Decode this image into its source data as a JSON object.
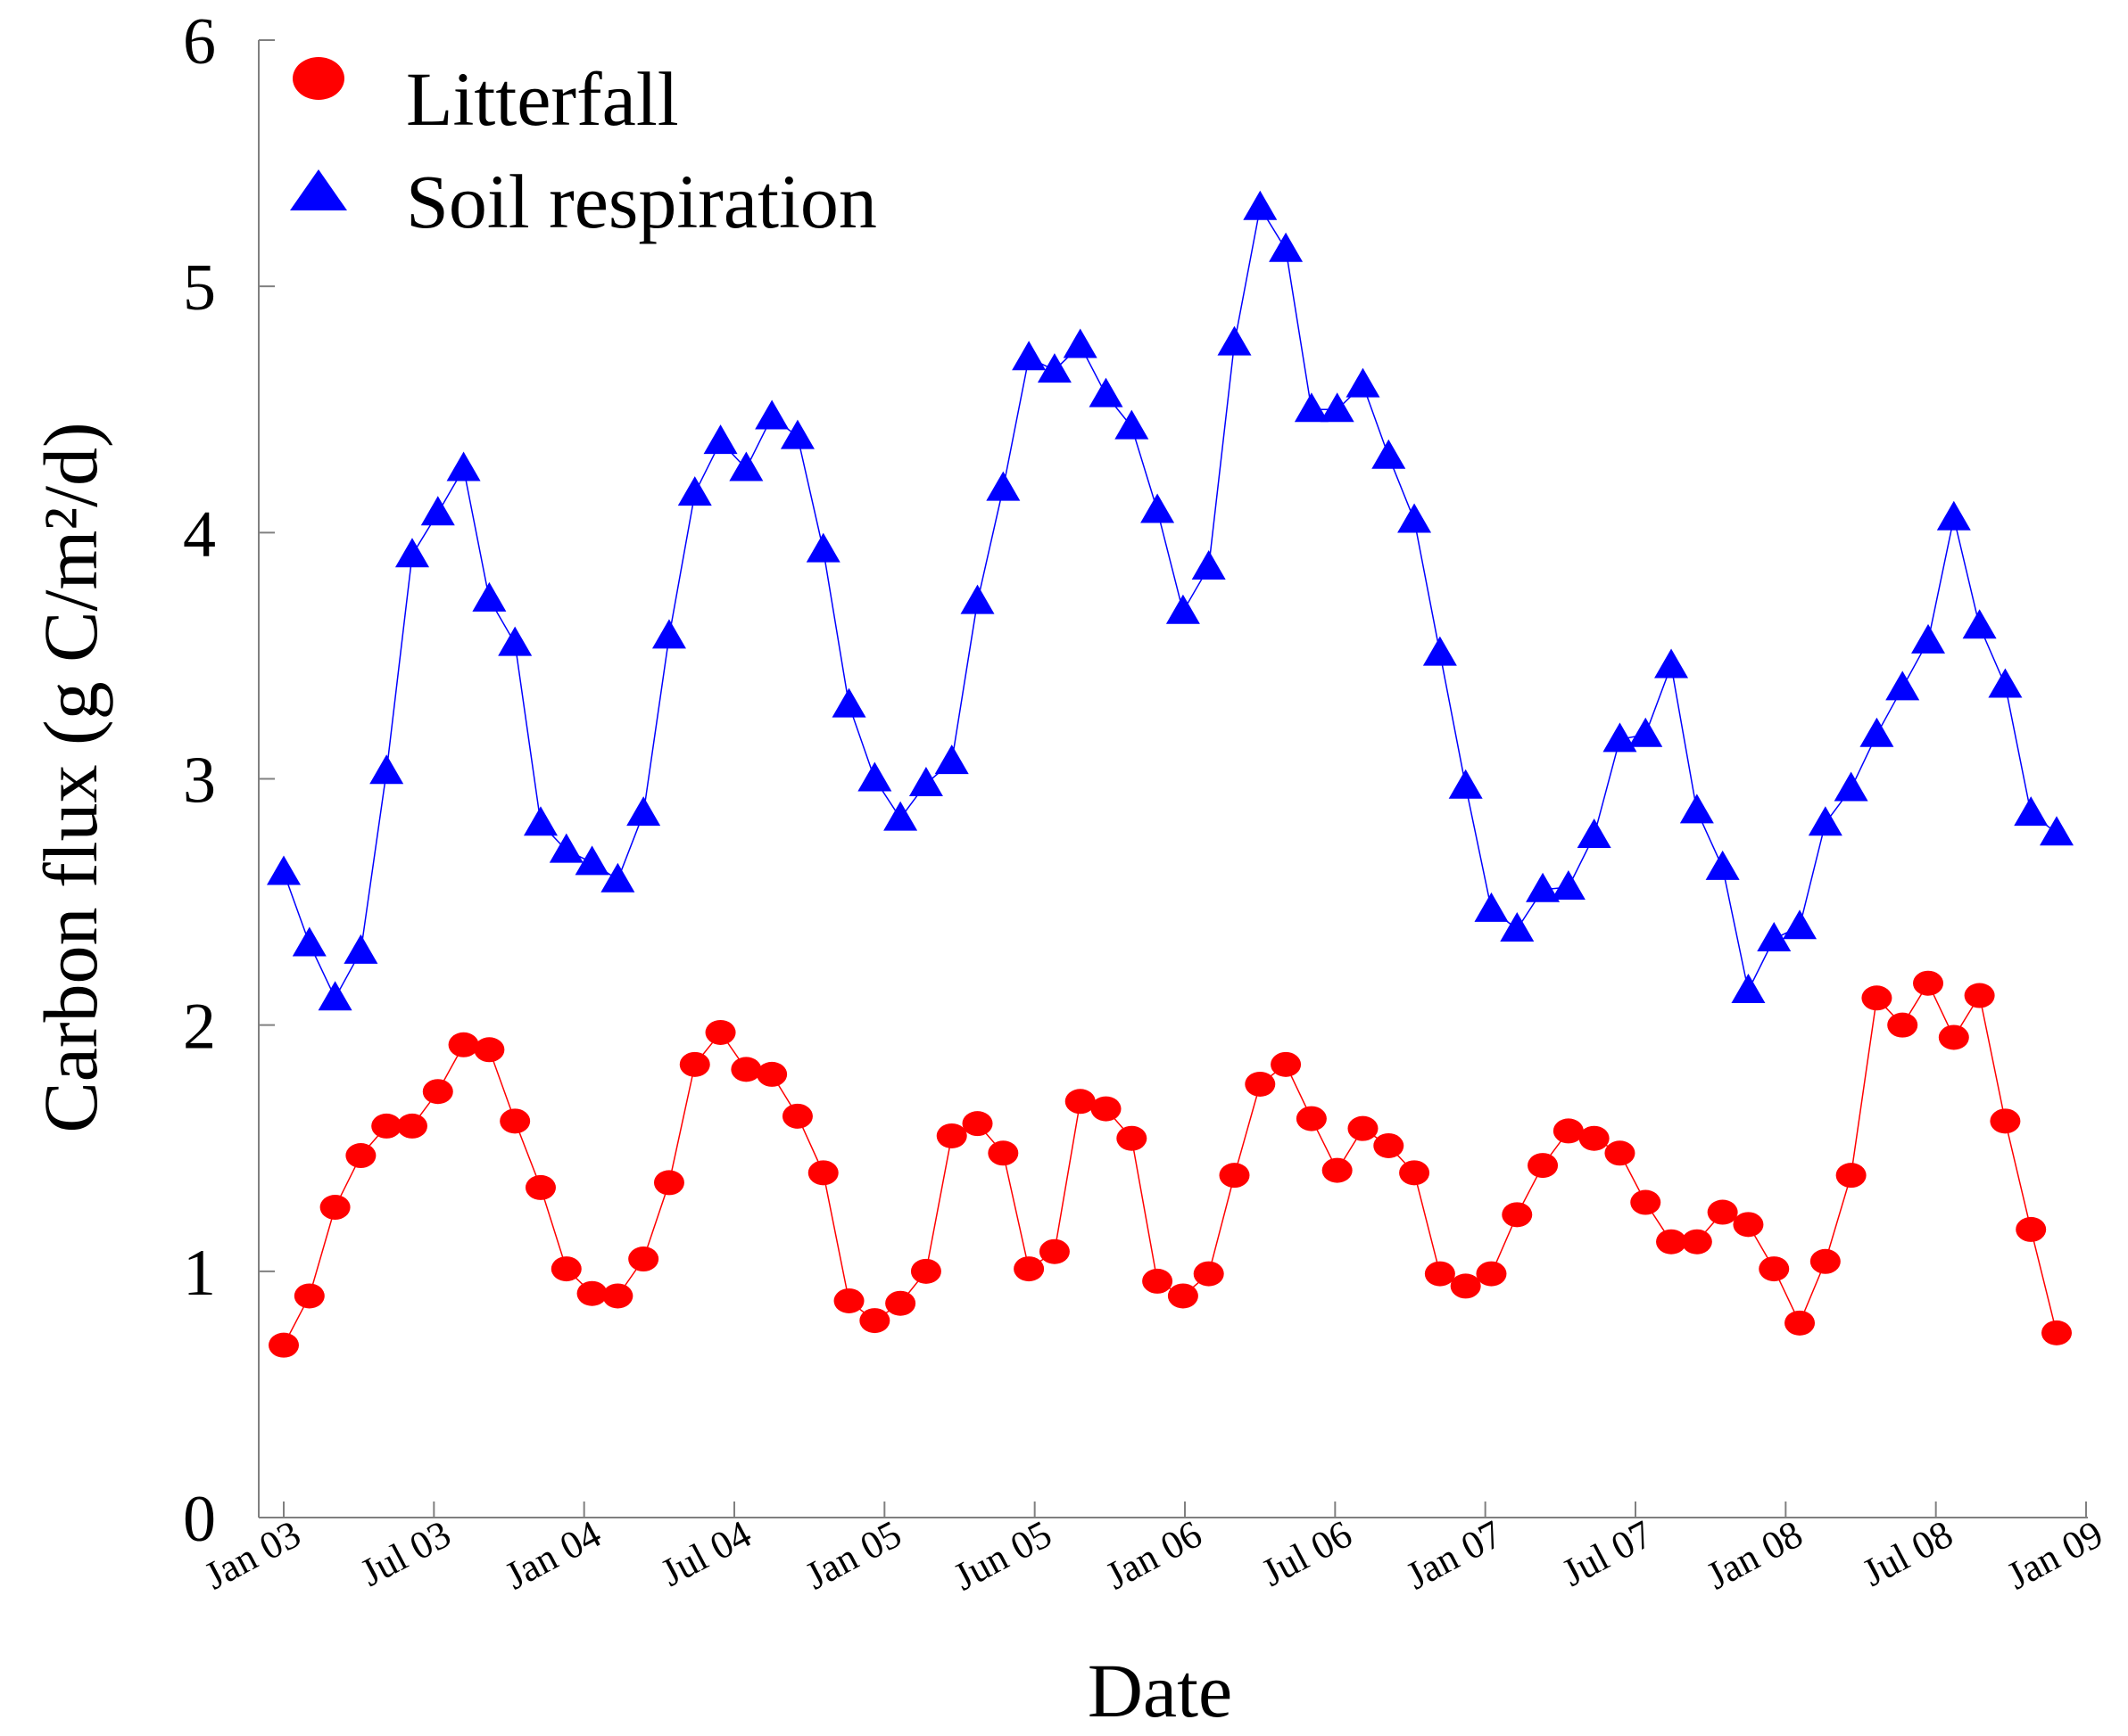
{
  "chart_data": {
    "type": "line",
    "xlabel": "Date",
    "ylabel": "Carbon flux (g C/m²/d)",
    "ylim": [
      0,
      6
    ],
    "yticks": [
      "0",
      "1",
      "2",
      "3",
      "4",
      "5",
      "6"
    ],
    "xticks": [
      "Jan 03",
      "Jul 03",
      "Jan 04",
      "Jul 04",
      "Jan 05",
      "Jun 05",
      "Jan 06",
      "Jul 06",
      "Jan 07",
      "Jul 07",
      "Jan 08",
      "Jul 08",
      "Jan 09"
    ],
    "grid": false,
    "legend_position": "top-left",
    "series": [
      {
        "name": "Litterfall",
        "color": "#ff0000",
        "marker": "circle",
        "values": [
          0.7,
          0.9,
          1.26,
          1.47,
          1.59,
          1.59,
          1.73,
          1.92,
          1.9,
          1.61,
          1.34,
          1.01,
          0.91,
          0.9,
          1.05,
          1.36,
          1.84,
          1.97,
          1.82,
          1.8,
          1.63,
          1.4,
          0.88,
          0.8,
          0.87,
          1.0,
          1.55,
          1.6,
          1.48,
          1.01,
          1.08,
          1.69,
          1.66,
          1.54,
          0.96,
          0.9,
          0.99,
          1.39,
          1.76,
          1.84,
          1.62,
          1.41,
          1.58,
          1.51,
          1.4,
          0.99,
          0.94,
          0.99,
          1.23,
          1.43,
          1.57,
          1.54,
          1.48,
          1.28,
          1.12,
          1.12,
          1.24,
          1.19,
          1.01,
          0.79,
          1.04,
          1.39,
          2.11,
          2.0,
          2.17,
          1.95,
          2.12,
          1.61,
          1.17,
          0.75
        ]
      },
      {
        "name": "Soil respiration",
        "color": "#0000ff",
        "marker": "triangle",
        "values": [
          2.62,
          2.33,
          2.11,
          2.3,
          3.03,
          3.91,
          4.08,
          4.26,
          3.73,
          3.55,
          2.82,
          2.71,
          2.66,
          2.59,
          2.86,
          3.58,
          4.16,
          4.37,
          4.26,
          4.47,
          4.39,
          3.93,
          3.3,
          3.0,
          2.84,
          2.98,
          3.07,
          3.72,
          4.18,
          4.71,
          4.66,
          4.76,
          4.56,
          4.43,
          4.09,
          3.68,
          3.86,
          4.77,
          5.32,
          5.15,
          4.5,
          4.5,
          4.6,
          4.31,
          4.05,
          3.51,
          2.97,
          2.47,
          2.39,
          2.55,
          2.56,
          2.77,
          3.16,
          3.18,
          3.46,
          2.87,
          2.64,
          2.14,
          2.35,
          2.4,
          2.82,
          2.96,
          3.18,
          3.37,
          3.56,
          4.06,
          3.62,
          3.38,
          2.86,
          2.78
        ]
      }
    ]
  }
}
